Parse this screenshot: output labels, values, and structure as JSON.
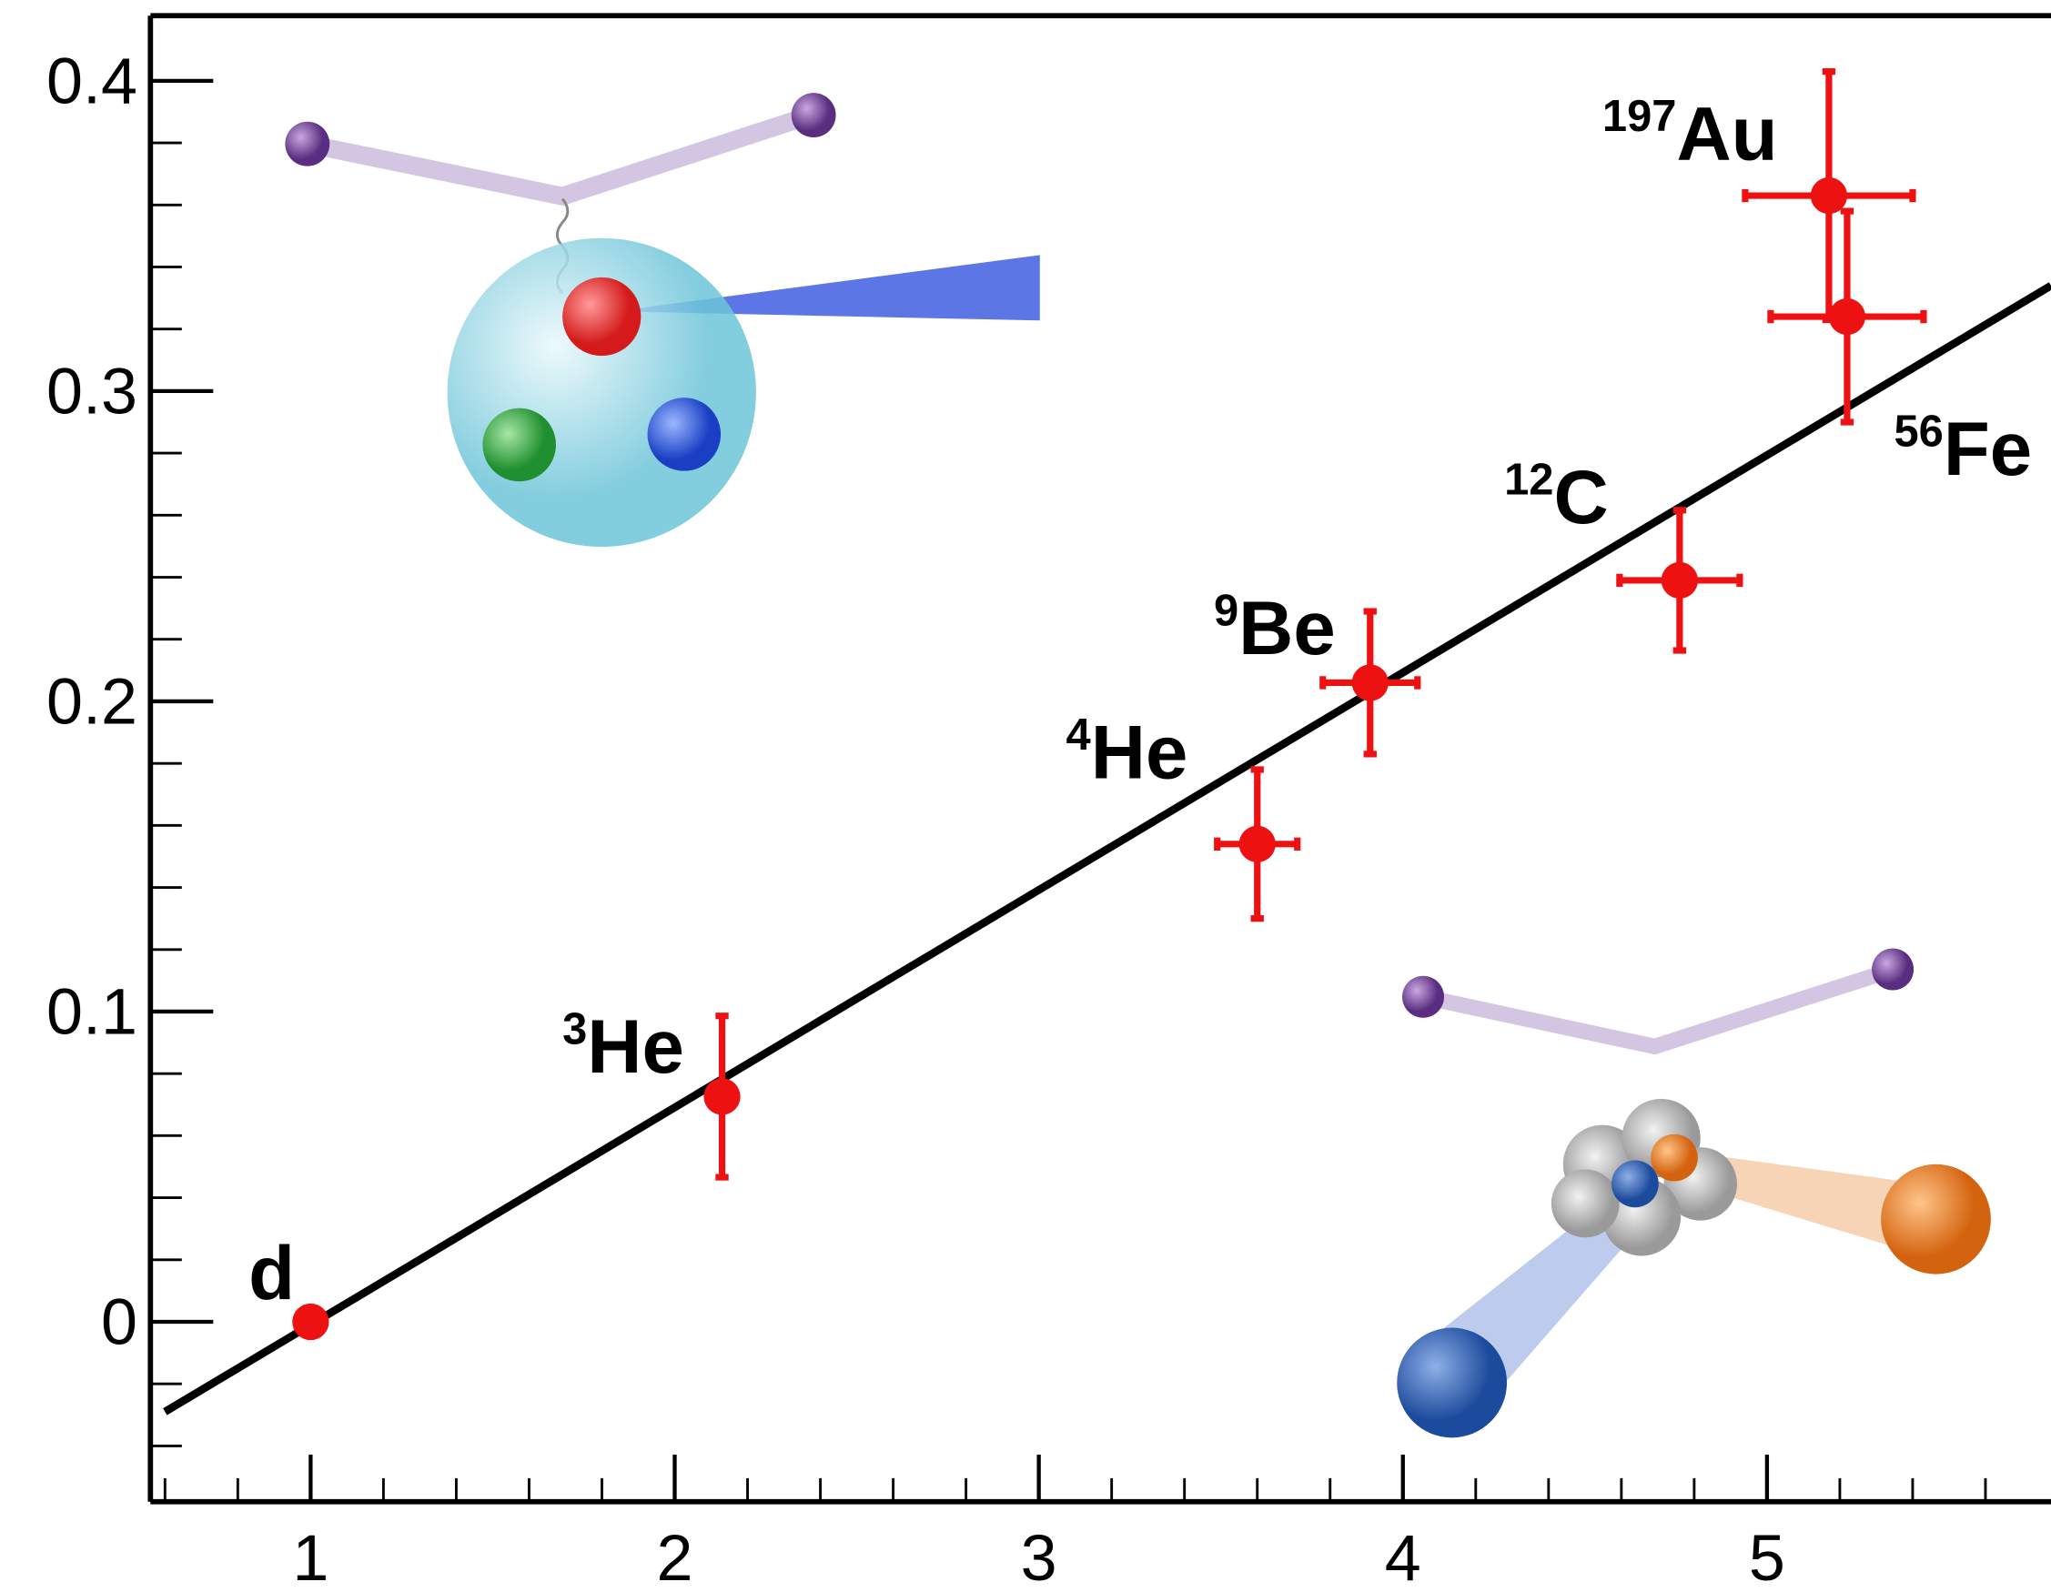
{
  "chart_data": {
    "type": "scatter",
    "series": [
      {
        "color": "#ee1111",
        "x": [
          1,
          2.13,
          3.6,
          3.91,
          4.76,
          5.22,
          5.17
        ],
        "values": [
          0,
          0.0726,
          0.154,
          0.206,
          0.239,
          0.324,
          0.363
        ],
        "yerr": [
          null,
          0.026,
          0.024,
          0.023,
          0.0226,
          0.034,
          0.04
        ],
        "xerr": [
          null,
          null,
          0.11,
          0.13,
          0.165,
          0.21,
          0.23
        ],
        "labels": [
          {
            "text": "d"
          },
          {
            "sup": "3",
            "text": "He"
          },
          {
            "sup": "4",
            "text": "He"
          },
          {
            "sup": "9",
            "text": "Be"
          },
          {
            "sup": "12",
            "text": "C"
          },
          {
            "sup": "56",
            "text": "Fe"
          },
          {
            "sup": "197",
            "text": "Au"
          }
        ]
      }
    ],
    "fit": {
      "color": "#000000",
      "x": [
        0.6,
        5.78
      ],
      "y": [
        -0.029,
        0.334
      ]
    },
    "xlim": [
      0.56,
      5.78
    ],
    "ylim": [
      -0.058,
      0.421
    ],
    "xticks": [
      1,
      2,
      3,
      4,
      5
    ],
    "yticks": [
      0,
      0.1,
      0.2,
      0.3,
      0.4
    ],
    "xminorticks": [
      0.6,
      0.8,
      1.2,
      1.4,
      1.6,
      1.8,
      2.2,
      2.4,
      2.6,
      2.8,
      3.2,
      3.4,
      3.6,
      3.8,
      4.2,
      4.4,
      4.6,
      4.8,
      5.2,
      5.4,
      5.6
    ],
    "yminorticks": [
      -0.04,
      -0.02,
      0.02,
      0.04,
      0.06,
      0.08,
      0.12,
      0.14,
      0.16,
      0.18,
      0.22,
      0.24,
      0.26,
      0.28,
      0.32,
      0.34,
      0.36,
      0.38
    ]
  }
}
